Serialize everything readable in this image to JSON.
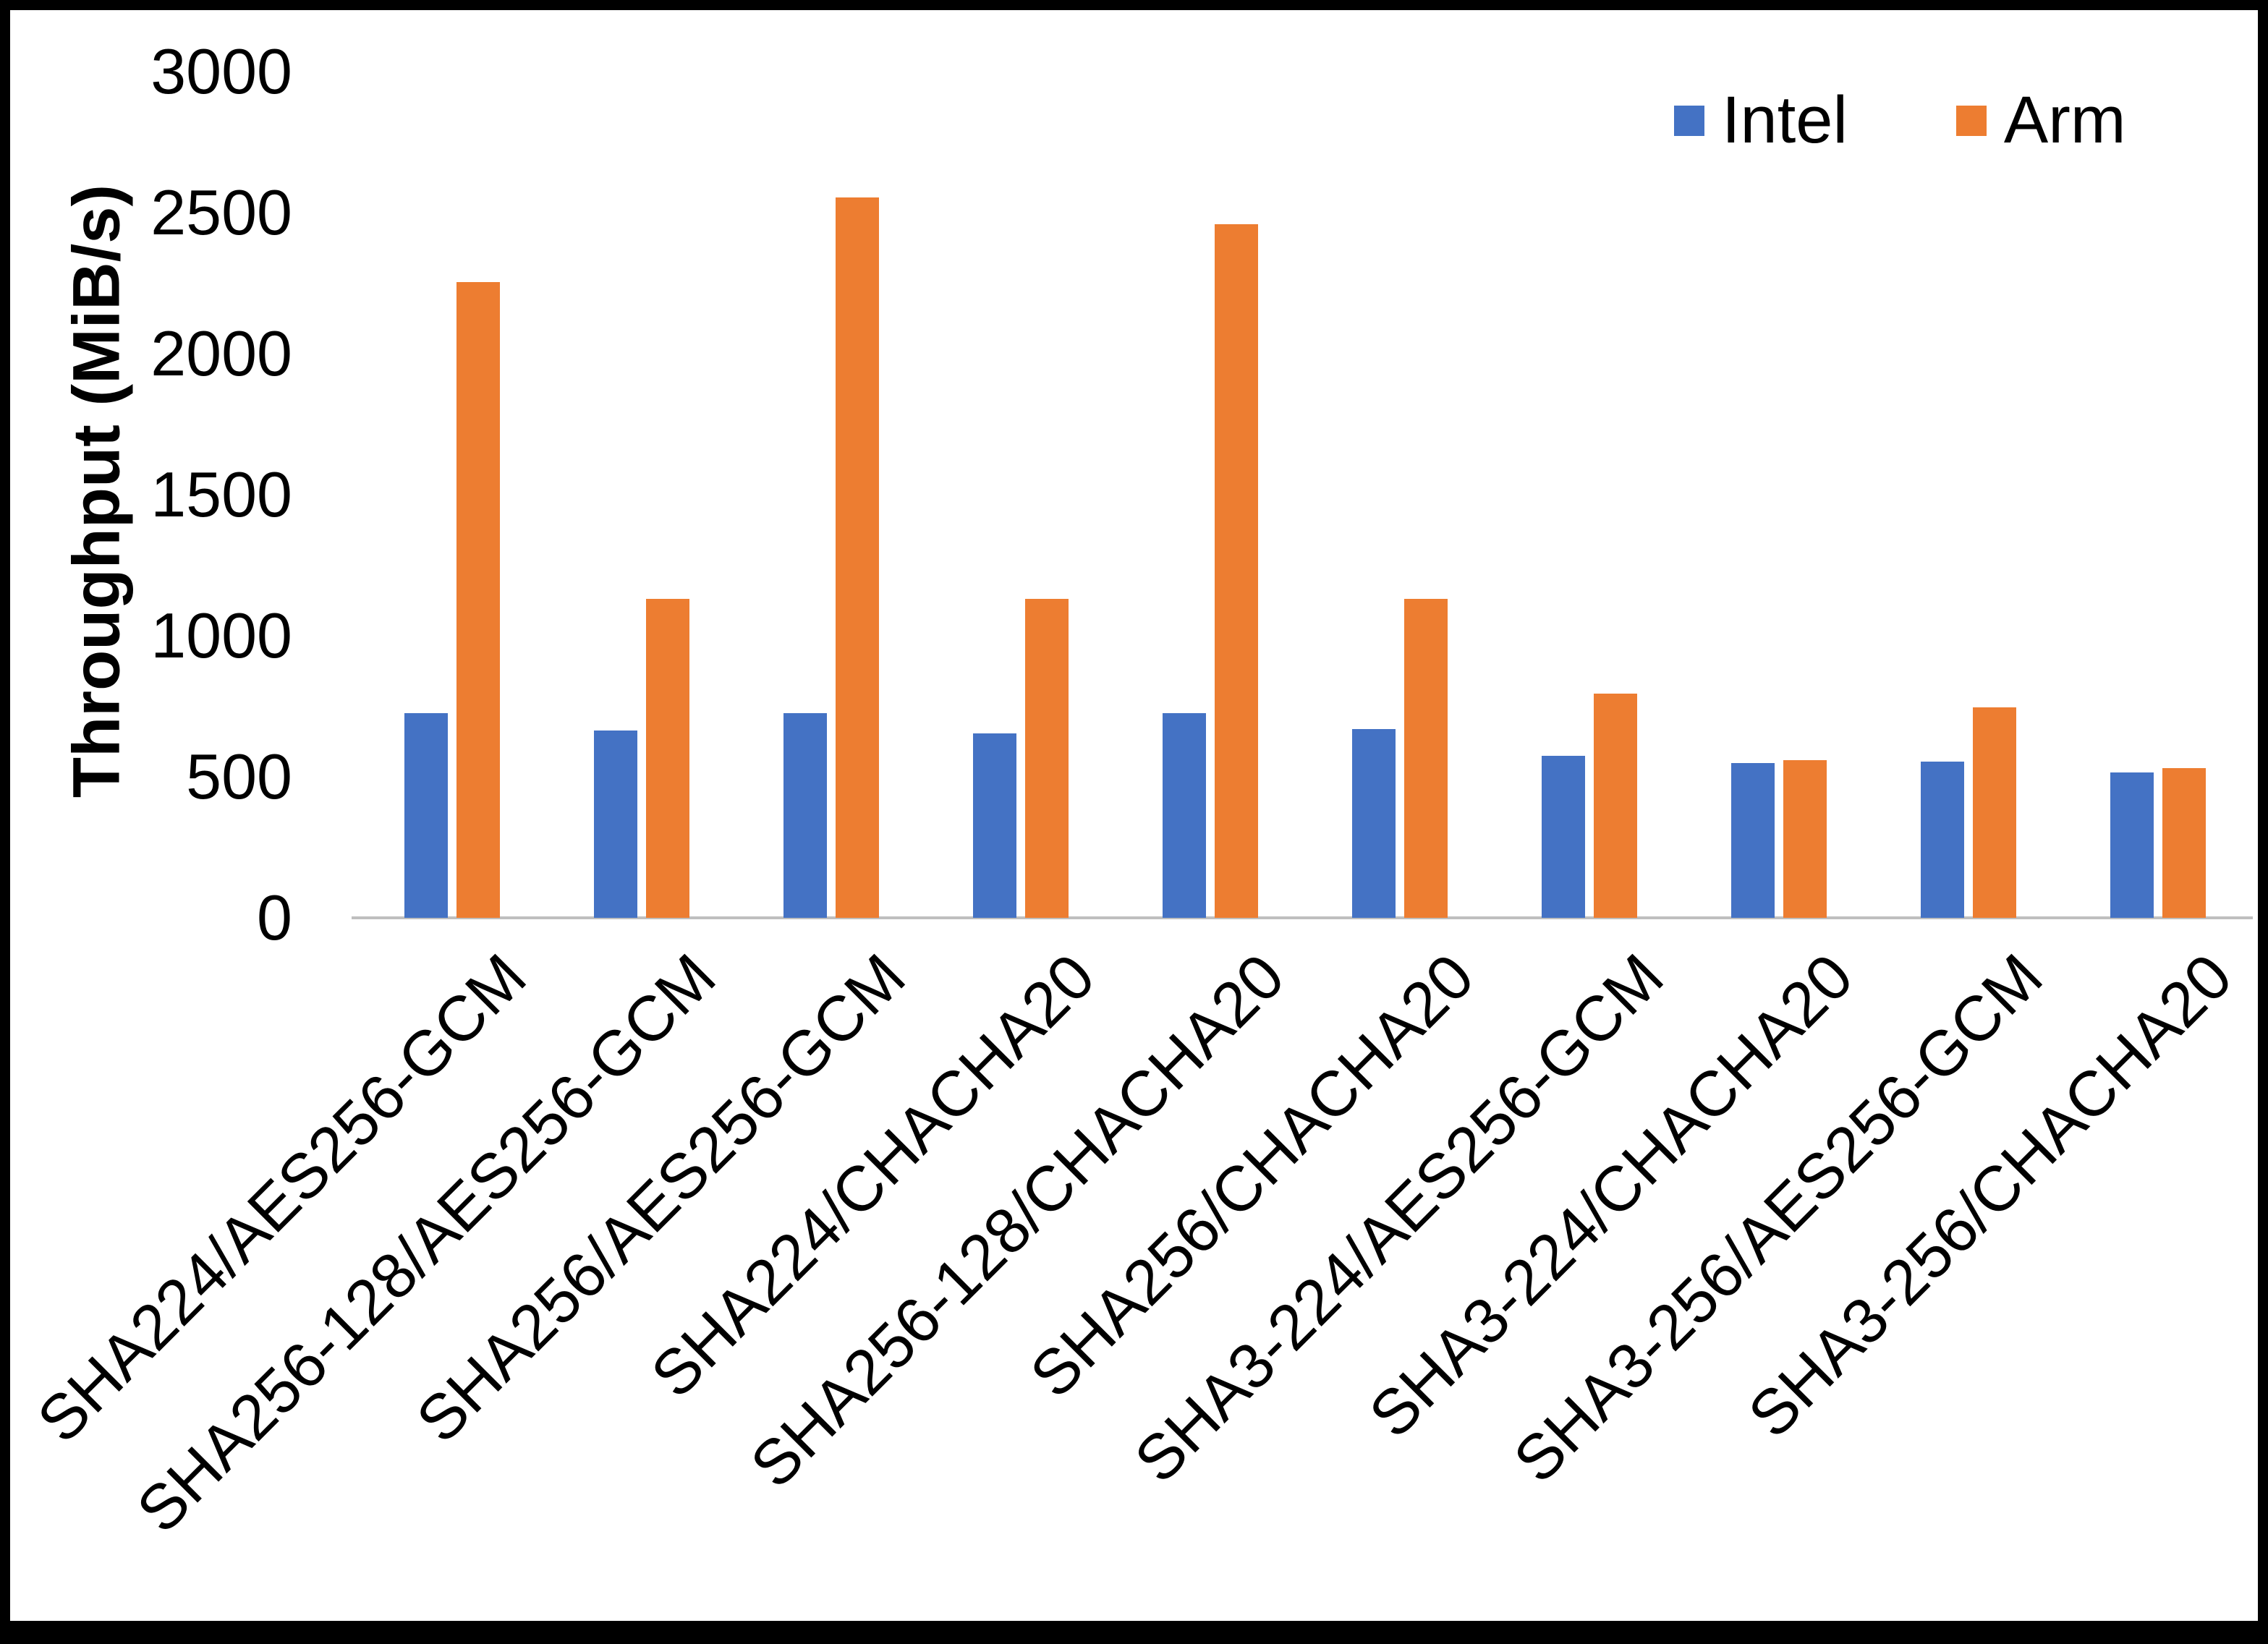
{
  "chart_data": {
    "type": "bar",
    "ylabel": "Throughput (MiB/s)",
    "xlabel": "",
    "ylim": [
      0,
      3000
    ],
    "ytick_interval": 500,
    "grid": false,
    "legend_position": "top-right",
    "categories": [
      "SHA224/AES256-GCM",
      "SHA256-128/AES256-GCM",
      "SHA256/AES256-GCM",
      "SHA224/CHACHA20",
      "SHA256-128/CHACHA20",
      "SHA256/CHACHA20",
      "SHA3-224/AES256-GCM",
      "SHA3-224/CHACHA20",
      "SHA3-256/AES256-GCM",
      "SHA3-256/CHACHA20"
    ],
    "series": [
      {
        "name": "Intel",
        "color": "#4472C4",
        "values": [
          725,
          665,
          725,
          655,
          725,
          670,
          575,
          550,
          555,
          515
        ]
      },
      {
        "name": "Arm",
        "color": "#ED7D31",
        "values": [
          2255,
          1130,
          2555,
          1130,
          2460,
          1130,
          795,
          560,
          745,
          530
        ]
      }
    ]
  },
  "axis": {
    "yticks": [
      "0",
      "500",
      "1000",
      "1500",
      "2000",
      "2500",
      "3000"
    ]
  }
}
